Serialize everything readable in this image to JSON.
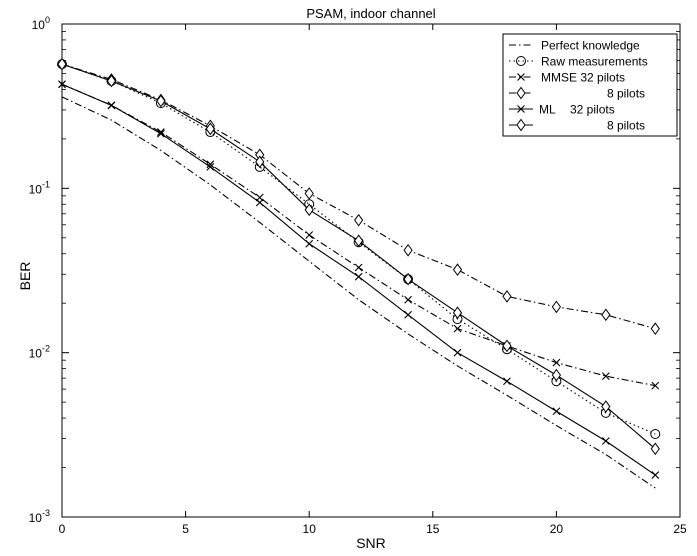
{
  "chart_data": {
    "type": "line",
    "title": "PSAM, indoor channel",
    "xlabel": "SNR",
    "ylabel": "BER",
    "xlim": [
      0,
      25
    ],
    "ylim": [
      0.001,
      1
    ],
    "yscale": "log",
    "grid": false,
    "legend_position": "top-right",
    "x_ticks": [
      "0",
      "5",
      "10",
      "15",
      "20",
      "25"
    ],
    "y_ticks": [
      {
        "base": "10",
        "exp": "0"
      },
      {
        "base": "10",
        "exp": "-1"
      },
      {
        "base": "10",
        "exp": "-2"
      },
      {
        "base": "10",
        "exp": "-3"
      }
    ],
    "series": [
      {
        "name": "Perfect knowledge",
        "line_style": "dashdot",
        "marker": "none",
        "x": [
          0,
          2,
          4,
          6,
          8,
          10,
          12,
          14,
          16,
          18,
          20,
          22,
          24
        ],
        "y": [
          0.36,
          0.26,
          0.17,
          0.105,
          0.062,
          0.036,
          0.021,
          0.013,
          0.0083,
          0.0055,
          0.0036,
          0.0024,
          0.0015
        ]
      },
      {
        "name": "Raw measurements",
        "line_style": "dotted",
        "marker": "circle",
        "x": [
          0,
          2,
          4,
          6,
          8,
          10,
          12,
          14,
          16,
          18,
          20,
          22,
          24
        ],
        "y": [
          0.57,
          0.45,
          0.33,
          0.22,
          0.135,
          0.08,
          0.047,
          0.028,
          0.016,
          0.0105,
          0.0067,
          0.0043,
          0.0032
        ]
      },
      {
        "name": "MMSE 32 pilots",
        "line_style": "dashdot",
        "marker": "x",
        "x": [
          0,
          2,
          4,
          6,
          8,
          10,
          12,
          14,
          16,
          18,
          20,
          22,
          24
        ],
        "y": [
          0.43,
          0.32,
          0.22,
          0.14,
          0.088,
          0.052,
          0.033,
          0.021,
          0.014,
          0.011,
          0.0087,
          0.0072,
          0.0063
        ]
      },
      {
        "name": "8 pilots",
        "line_style": "dashdot",
        "marker": "diamond",
        "x": [
          0,
          2,
          4,
          6,
          8,
          10,
          12,
          14,
          16,
          18,
          20,
          22,
          24
        ],
        "y": [
          0.57,
          0.46,
          0.345,
          0.24,
          0.16,
          0.093,
          0.064,
          0.042,
          0.032,
          0.022,
          0.019,
          0.017,
          0.014
        ]
      },
      {
        "name": "ML 32 pilots",
        "line_style": "solid",
        "marker": "x",
        "x": [
          0,
          2,
          4,
          6,
          8,
          10,
          12,
          14,
          16,
          18,
          20,
          22,
          24
        ],
        "y": [
          0.43,
          0.32,
          0.215,
          0.135,
          0.082,
          0.046,
          0.029,
          0.017,
          0.01,
          0.0067,
          0.0044,
          0.0029,
          0.0018
        ]
      },
      {
        "name": "8 pilots",
        "line_style": "solid",
        "marker": "diamond",
        "x": [
          0,
          2,
          4,
          6,
          8,
          10,
          12,
          14,
          16,
          18,
          20,
          22,
          24
        ],
        "y": [
          0.57,
          0.45,
          0.34,
          0.23,
          0.145,
          0.074,
          0.048,
          0.028,
          0.0175,
          0.011,
          0.0073,
          0.0047,
          0.0026
        ]
      }
    ],
    "legend": [
      {
        "prefix": "",
        "label": "Perfect knowledge"
      },
      {
        "prefix": "",
        "label": "Raw measurements"
      },
      {
        "prefix": "",
        "label": "MMSE 32 pilots"
      },
      {
        "prefix": "",
        "label": "8 pilots"
      },
      {
        "prefix": "ML",
        "label": "32 pilots"
      },
      {
        "prefix": "",
        "label": "8 pilots"
      }
    ]
  }
}
